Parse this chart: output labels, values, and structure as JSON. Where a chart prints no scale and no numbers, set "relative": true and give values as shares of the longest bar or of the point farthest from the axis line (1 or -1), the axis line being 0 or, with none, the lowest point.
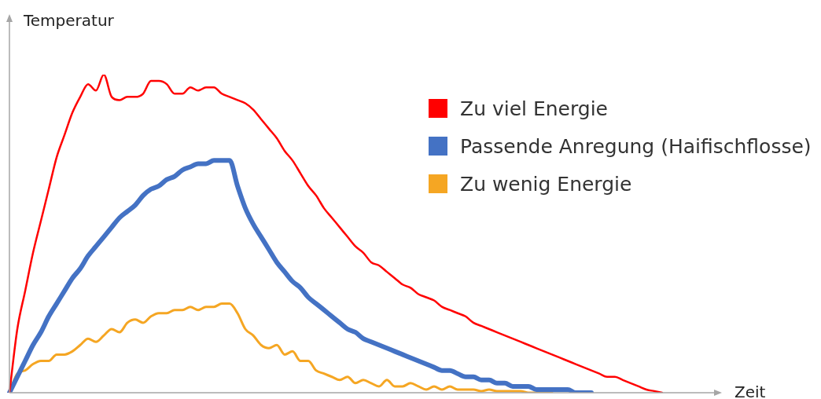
{
  "chart_data": {
    "type": "line",
    "relative": true,
    "xlabel": "Zeit",
    "ylabel": "Temperatur",
    "legend": "top right",
    "marker": "none",
    "categories": [
      null,
      null,
      null,
      null,
      null,
      null,
      null,
      null,
      null,
      null,
      null,
      null,
      null,
      null,
      null,
      null,
      null,
      null,
      null,
      null,
      null,
      null,
      null,
      null,
      null,
      null,
      null,
      null,
      null,
      null,
      null,
      null,
      null,
      null,
      null,
      null,
      null,
      null,
      null,
      null,
      null,
      null,
      null,
      null,
      null,
      null,
      null,
      null,
      null,
      null,
      null,
      null,
      null,
      null,
      null,
      null,
      null,
      null,
      null,
      null,
      null,
      null,
      null,
      null,
      null,
      null,
      null,
      null,
      null,
      null,
      null,
      null,
      null,
      null,
      null,
      null,
      null,
      null,
      null,
      null,
      null,
      null,
      null,
      null
    ],
    "series": [
      {
        "name": "Zu viel Energie",
        "color": "#ff0000",
        "values": [
          0,
          0.2,
          0.32,
          0.44,
          0.54,
          0.64,
          0.74,
          0.81,
          0.88,
          0.93,
          0.97,
          0.95,
          1.0,
          0.93,
          0.92,
          0.93,
          0.93,
          0.94,
          0.98,
          0.98,
          0.97,
          0.94,
          0.94,
          0.96,
          0.95,
          0.96,
          0.96,
          0.94,
          0.93,
          0.92,
          0.91,
          0.89,
          0.86,
          0.83,
          0.8,
          0.76,
          0.73,
          0.69,
          0.65,
          0.62,
          0.58,
          0.55,
          0.52,
          0.49,
          0.46,
          0.44,
          0.41,
          0.4,
          0.38,
          0.36,
          0.34,
          0.33,
          0.31,
          0.3,
          0.29,
          0.27,
          0.26,
          0.25,
          0.24,
          0.22,
          0.21,
          0.2,
          0.19,
          0.18,
          0.17,
          0.16,
          0.15,
          0.14,
          0.13,
          0.12,
          0.11,
          0.1,
          0.09,
          0.08,
          0.07,
          0.06,
          0.05,
          0.05,
          0.04,
          0.03,
          0.02,
          0.01,
          0.005,
          0
        ]
      },
      {
        "name": "Passende Anregung (Haifischflosse)",
        "color": "#4472c4",
        "values": [
          0,
          0.05,
          0.1,
          0.15,
          0.19,
          0.24,
          0.28,
          0.32,
          0.36,
          0.39,
          0.43,
          0.46,
          0.49,
          0.52,
          0.55,
          0.57,
          0.59,
          0.62,
          0.64,
          0.65,
          0.67,
          0.68,
          0.7,
          0.71,
          0.72,
          0.72,
          0.73,
          0.73,
          0.73,
          0.65,
          0.58,
          0.53,
          0.49,
          0.45,
          0.41,
          0.38,
          0.35,
          0.33,
          0.3,
          0.28,
          0.26,
          0.24,
          0.22,
          0.2,
          0.19,
          0.17,
          0.16,
          0.15,
          0.14,
          0.13,
          0.12,
          0.11,
          0.1,
          0.09,
          0.08,
          0.07,
          0.07,
          0.06,
          0.05,
          0.05,
          0.04,
          0.04,
          0.03,
          0.03,
          0.02,
          0.02,
          0.02,
          0.01,
          0.01,
          0.01,
          0.01,
          0.01,
          0,
          0,
          0,
          null,
          null,
          null,
          null,
          null,
          null,
          null,
          null,
          null
        ]
      },
      {
        "name": "Zu wenig Energie",
        "color": "#f5a623",
        "values": [
          0,
          0.06,
          0.07,
          0.09,
          0.1,
          0.1,
          0.12,
          0.12,
          0.13,
          0.15,
          0.17,
          0.16,
          0.18,
          0.2,
          0.19,
          0.22,
          0.23,
          0.22,
          0.24,
          0.25,
          0.25,
          0.26,
          0.26,
          0.27,
          0.26,
          0.27,
          0.27,
          0.28,
          0.28,
          0.25,
          0.2,
          0.18,
          0.15,
          0.14,
          0.15,
          0.12,
          0.13,
          0.1,
          0.1,
          0.07,
          0.06,
          0.05,
          0.04,
          0.05,
          0.03,
          0.04,
          0.03,
          0.02,
          0.04,
          0.02,
          0.02,
          0.03,
          0.02,
          0.01,
          0.02,
          0.01,
          0.02,
          0.01,
          0.01,
          0.01,
          0.005,
          0.01,
          0.005,
          0.005,
          0.005,
          0.005,
          0,
          0,
          0,
          0,
          null,
          null,
          null,
          null,
          null,
          null,
          null,
          null,
          null,
          null,
          null,
          null,
          null,
          null
        ]
      }
    ]
  }
}
